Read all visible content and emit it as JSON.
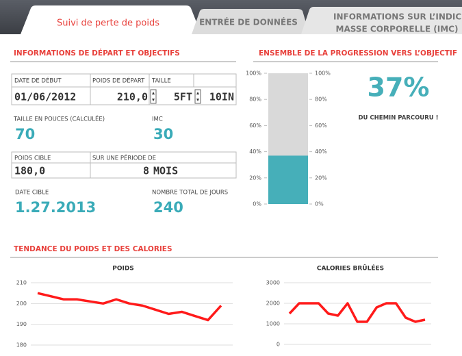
{
  "tabs": [
    "Suivi de perte de poids",
    "ENTRÉE DE DONNÉES",
    "INFORMATIONS SUR L’INDICE DE",
    "MASSE CORPORELLE (IMC)"
  ],
  "start_section": {
    "title": "INFORMATIONS DE DÉPART ET OBJECTIFS",
    "start_date": {
      "label": "DATE DE DÉBUT",
      "value": "01/06/2012"
    },
    "start_weight": {
      "label": "POIDS DE DÉPART",
      "value": "210,0"
    },
    "height": {
      "label": "TAILLE",
      "feet": "5FT",
      "inches": "10IN"
    },
    "height_inches": {
      "label": "TAILLE EN POUCES (CALCULÉE)",
      "value": 70
    },
    "bmi": {
      "label": "IMC",
      "value": 30
    },
    "target_weight": {
      "label": "POIDS CIBLE",
      "value": "180,0"
    },
    "period": {
      "label": "SUR UNE PÉRIODE DE",
      "value": 8,
      "unit": "MOIS"
    },
    "target_date": {
      "label": "DATE CIBLE",
      "value": "1.27.2013"
    },
    "total_days": {
      "label": "NOMBRE TOTAL DE JOURS",
      "value": 240
    }
  },
  "trend_section": {
    "title": "TENDANCE DU POIDS ET DES CALORIES"
  },
  "chart_data": [
    {
      "type": "progress",
      "title": "ENSEMBLE DE LA PROGRESSION VERS L’OBJECTIF",
      "values": [
        37
      ],
      "value_labels": [
        "37%"
      ],
      "caption": "DU CHEMIN PARCOURU !",
      "color": "#46afb9",
      "track_color": "#d9d9d9",
      "ylim": [
        0,
        100
      ],
      "yticks": [
        {
          "value": 0,
          "label": "0%"
        },
        {
          "value": 20,
          "label": "20%"
        },
        {
          "value": 40,
          "label": "40%"
        },
        {
          "value": 60,
          "label": "60%"
        },
        {
          "value": 80,
          "label": "80%"
        },
        {
          "value": 100,
          "label": "100%"
        }
      ]
    },
    {
      "type": "line",
      "title": "POIDS",
      "color": "#ff1a1a",
      "grid": true,
      "categories": [
        null,
        null,
        null,
        null,
        null,
        null,
        null,
        null,
        null,
        null,
        null,
        null,
        null,
        null,
        null
      ],
      "values": [
        205,
        203.5,
        202,
        202,
        201,
        200,
        202,
        200,
        199,
        197,
        195,
        196,
        194,
        192,
        199
      ],
      "ylim": [
        180,
        210
      ],
      "yticks": [
        180,
        190,
        200,
        210
      ]
    },
    {
      "type": "line",
      "title": "CALORIES BRÛLÉES",
      "color": "#ff1a1a",
      "grid": true,
      "categories": [
        null,
        null,
        null,
        null,
        null,
        null,
        null,
        null,
        null,
        null,
        null,
        null,
        null,
        null,
        null
      ],
      "values": [
        1500,
        2000,
        2000,
        2000,
        1500,
        1400,
        2000,
        1100,
        1100,
        1800,
        2000,
        2000,
        1300,
        1100,
        1200
      ],
      "ylim": [
        0,
        3000
      ],
      "yticks": [
        0,
        1000,
        2000,
        3000
      ]
    }
  ]
}
